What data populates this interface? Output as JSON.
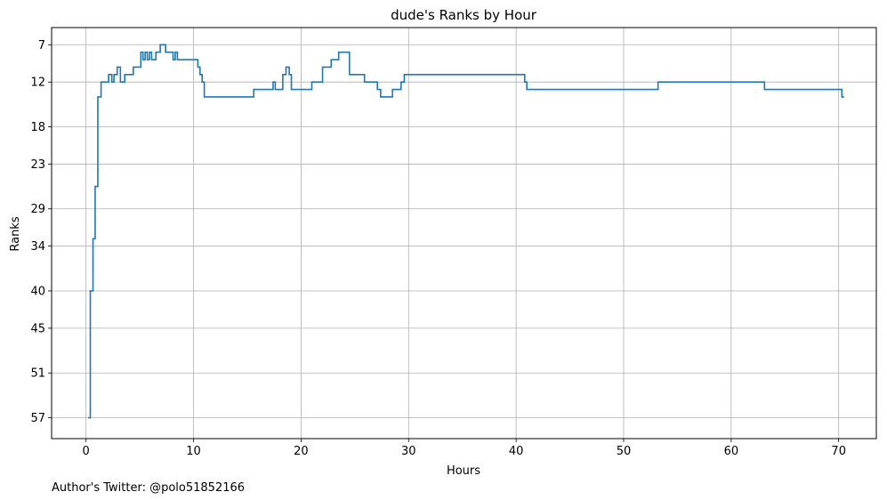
{
  "chart_data": {
    "type": "line",
    "drawstyle": "steps-post",
    "title": "dude's Ranks by Hour",
    "xlabel": "Hours",
    "ylabel": "Ranks",
    "footer": "Author's Twitter: @polo51852166",
    "xlim": [
      -3.2,
      73.5
    ],
    "ylim": [
      59.8,
      4.7
    ],
    "y_inverted": true,
    "grid": true,
    "line_color": "#1f77b4",
    "grid_color": "#b0b0b0",
    "x_ticks": [
      0,
      10,
      20,
      30,
      40,
      50,
      60,
      70
    ],
    "x_tick_labels": [
      "0",
      "10",
      "20",
      "30",
      "40",
      "50",
      "60",
      "70"
    ],
    "y_ticks": [
      7,
      12,
      18,
      23,
      29,
      34,
      40,
      45,
      51,
      57
    ],
    "y_tick_labels": [
      "7",
      "12",
      "18",
      "23",
      "29",
      "34",
      "40",
      "45",
      "51",
      "57"
    ],
    "series": [
      {
        "x": [
          0.2,
          0.4,
          0.65,
          0.85,
          1.1,
          1.4,
          2.1,
          2.4,
          2.6,
          2.9,
          3.2,
          3.6,
          4.4,
          5.1,
          5.3,
          5.5,
          5.7,
          5.9,
          6.1,
          6.5,
          6.9,
          7.4,
          8.1,
          8.3,
          8.5,
          8.8,
          10.4,
          10.6,
          10.8,
          11.0,
          15.6,
          17.4,
          17.6,
          18.3,
          18.6,
          18.9,
          19.1,
          21.0,
          22.0,
          22.8,
          23.5,
          24.5,
          25.9,
          27.1,
          27.4,
          28.5,
          29.3,
          29.6,
          40.8,
          41.0,
          53.2,
          63.1,
          70.3,
          70.5
        ],
        "y": [
          57,
          40,
          33,
          26,
          14,
          12,
          11,
          12,
          11,
          10,
          12,
          11,
          10,
          8,
          9,
          8,
          9,
          8,
          9,
          8,
          7,
          8,
          9,
          8,
          9,
          9,
          10,
          11,
          12,
          14,
          13,
          12,
          13,
          11,
          10,
          11,
          13,
          12,
          10,
          9,
          8,
          11,
          12,
          13,
          14,
          13,
          12,
          11,
          12,
          13,
          12,
          13,
          14,
          14
        ]
      }
    ]
  }
}
